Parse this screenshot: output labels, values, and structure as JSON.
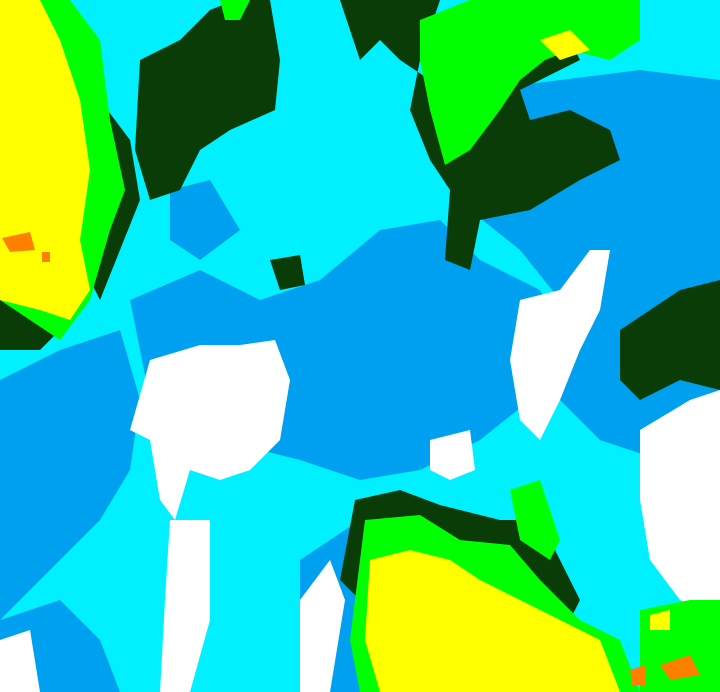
{
  "map": {
    "type": "classified-raster",
    "colors": {
      "cyan": "#00f0ff",
      "blue": "#00a0f0",
      "white": "#ffffff",
      "dark_green": "#0a3c08",
      "green": "#00ff00",
      "yellow": "#ffff00",
      "orange": "#ff8000"
    }
  }
}
